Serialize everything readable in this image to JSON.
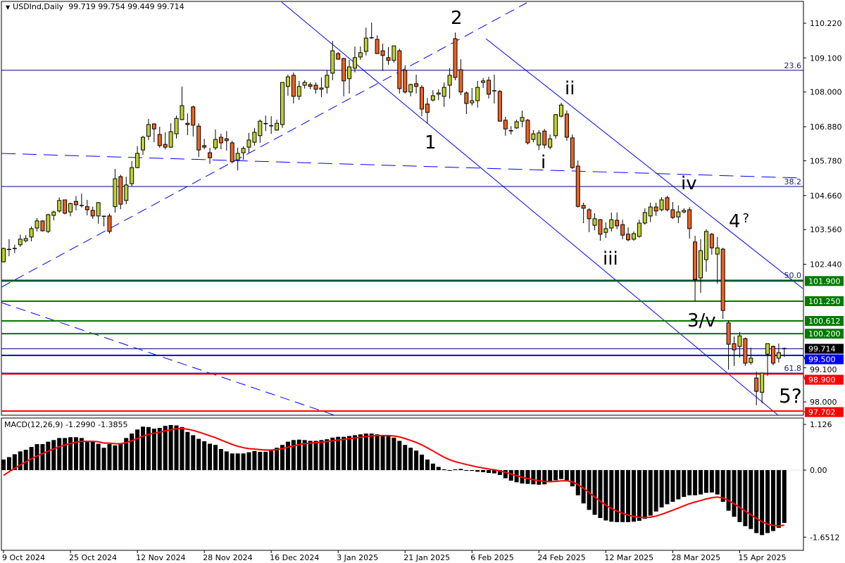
{
  "header": {
    "symbol": "USDInd,Daily",
    "ohlc": "99.719 99.754 99.449 99.714"
  },
  "macd_header": {
    "label": "MACD(12,26,9)",
    "values": "-1.2990 -1.3855"
  },
  "wave_labels": {
    "w1": "1",
    "w2": "2",
    "wi": "i",
    "wii": "ii",
    "wiii": "iii",
    "wiv": "iv",
    "w4": "4",
    "w4q": "?",
    "w3v": "3/v",
    "w5": "5?"
  },
  "colors": {
    "up": "#bfd22c",
    "down": "#f0621f",
    "trend": "#0000ff",
    "fib": "#000080",
    "green_level": "#007a00",
    "red_level": "#ff0000",
    "signal": "#ff0000"
  },
  "chart_data": [
    {
      "type": "candlestick",
      "title": "USDInd,Daily",
      "ylim": [
        97.5,
        110.9
      ],
      "price_ticks": [
        "110.220",
        "109.100",
        "108.000",
        "106.880",
        "105.780",
        "104.660",
        "103.560",
        "102.440",
        "99.100",
        "98.000"
      ],
      "date_ticks": [
        {
          "bar": 0,
          "label": "9 Oct 2024"
        },
        {
          "bar": 12,
          "label": "25 Oct 2024"
        },
        {
          "bar": 24,
          "label": "12 Nov 2024"
        },
        {
          "bar": 36,
          "label": "28 Nov 2024"
        },
        {
          "bar": 48,
          "label": "16 Dec 2024"
        },
        {
          "bar": 60,
          "label": "3 Jan 2025"
        },
        {
          "bar": 72,
          "label": "21 Jan 2025"
        },
        {
          "bar": 84,
          "label": "6 Feb 2025"
        },
        {
          "bar": 96,
          "label": "24 Feb 2025"
        },
        {
          "bar": 108,
          "label": "12 Mar 2025"
        },
        {
          "bar": 120,
          "label": "28 Mar 2025"
        },
        {
          "bar": 132,
          "label": "15 Apr 2025"
        }
      ],
      "levels": [
        {
          "price": 101.9,
          "label": "101.900",
          "color": "#007a00"
        },
        {
          "price": 101.25,
          "label": "101.250",
          "color": "#007a00"
        },
        {
          "price": 100.612,
          "label": "100.612",
          "color": "#007a00"
        },
        {
          "price": 100.2,
          "label": "100.200",
          "color": "#007a00"
        },
        {
          "price": 99.714,
          "label": "99.714",
          "color": "#000000"
        },
        {
          "price": 99.5,
          "label": "99.500",
          "color": "#0000ff"
        },
        {
          "price": 98.9,
          "label": "98.900",
          "color": "#ff0000"
        },
        {
          "price": 97.702,
          "label": "97.702",
          "color": "#ff0000"
        }
      ],
      "fib_levels": [
        {
          "price": 108.7,
          "label": "23.6"
        },
        {
          "price": 104.95,
          "label": "38.2"
        },
        {
          "price": 101.93,
          "label": "50.0"
        },
        {
          "price": 98.93,
          "label": "61.8"
        }
      ],
      "candles_ohlc": [
        [
          102.52,
          102.98,
          102.5,
          102.95
        ],
        [
          102.9,
          103.25,
          102.7,
          102.92
        ],
        [
          102.93,
          103.07,
          102.8,
          102.95
        ],
        [
          103.07,
          103.4,
          103.0,
          103.25
        ],
        [
          103.2,
          103.38,
          103.15,
          103.27
        ],
        [
          103.32,
          103.66,
          103.18,
          103.59
        ],
        [
          103.61,
          103.93,
          103.5,
          103.84
        ],
        [
          103.84,
          103.86,
          103.5,
          103.52
        ],
        [
          103.5,
          104.07,
          103.45,
          104.04
        ],
        [
          104.02,
          104.17,
          103.86,
          104.13
        ],
        [
          104.16,
          104.6,
          104.11,
          104.5
        ],
        [
          104.52,
          104.53,
          104.05,
          104.09
        ],
        [
          104.13,
          104.43,
          103.99,
          104.4
        ],
        [
          104.47,
          104.64,
          104.18,
          104.36
        ],
        [
          104.33,
          104.72,
          104.27,
          104.34
        ],
        [
          104.3,
          104.52,
          104.02,
          104.2
        ],
        [
          104.18,
          104.3,
          103.91,
          104.0
        ],
        [
          104.0,
          104.45,
          103.75,
          104.43
        ],
        [
          103.98,
          104.0,
          103.66,
          103.99
        ],
        [
          104.0,
          104.07,
          103.43,
          103.5
        ],
        [
          104.3,
          105.52,
          104.11,
          105.2
        ],
        [
          105.27,
          105.33,
          104.22,
          104.38
        ],
        [
          104.5,
          105.27,
          104.38,
          105.0
        ],
        [
          105.04,
          105.77,
          104.95,
          105.56
        ],
        [
          105.56,
          106.25,
          105.54,
          106.02
        ],
        [
          106.13,
          106.59,
          105.97,
          106.54
        ],
        [
          106.57,
          107.13,
          106.45,
          106.95
        ],
        [
          106.97,
          106.99,
          106.38,
          106.81
        ],
        [
          106.63,
          106.88,
          106.2,
          106.27
        ],
        [
          106.31,
          106.7,
          106.15,
          106.22
        ],
        [
          106.22,
          106.99,
          106.2,
          106.72
        ],
        [
          106.65,
          107.24,
          106.5,
          107.15
        ],
        [
          107.11,
          108.18,
          107.09,
          107.56
        ],
        [
          106.99,
          107.31,
          106.61,
          106.95
        ],
        [
          107.52,
          107.56,
          106.56,
          106.93
        ],
        [
          106.9,
          106.99,
          105.9,
          106.13
        ],
        [
          106.27,
          106.49,
          106.15,
          106.22
        ],
        [
          106.04,
          106.2,
          105.68,
          105.88
        ],
        [
          106.2,
          106.79,
          106.13,
          106.47
        ],
        [
          106.54,
          106.65,
          106.15,
          106.36
        ],
        [
          106.49,
          106.74,
          106.11,
          106.43
        ],
        [
          106.36,
          106.43,
          105.7,
          105.75
        ],
        [
          105.81,
          106.2,
          105.47,
          106.02
        ],
        [
          106.04,
          106.25,
          105.81,
          106.18
        ],
        [
          106.22,
          106.68,
          106.04,
          106.45
        ],
        [
          106.38,
          106.84,
          106.27,
          106.7
        ],
        [
          106.59,
          107.11,
          106.36,
          107.06
        ],
        [
          106.97,
          107.24,
          106.74,
          106.98
        ],
        [
          106.9,
          107.22,
          106.65,
          106.91
        ],
        [
          106.77,
          107.11,
          106.75,
          106.99
        ],
        [
          106.95,
          108.31,
          106.84,
          108.31
        ],
        [
          108.18,
          108.56,
          107.88,
          108.49
        ],
        [
          108.54,
          108.63,
          107.63,
          107.86
        ],
        [
          107.86,
          108.36,
          107.74,
          108.18
        ],
        [
          108.22,
          108.38,
          108.11,
          108.31
        ],
        [
          108.24,
          108.31,
          108.09,
          108.18
        ],
        [
          108.22,
          108.31,
          107.95,
          108.09
        ],
        [
          108.09,
          108.47,
          107.84,
          108.13
        ],
        [
          108.15,
          108.7,
          107.95,
          108.54
        ],
        [
          108.61,
          109.65,
          108.38,
          109.33
        ],
        [
          109.24,
          109.29,
          109.04,
          109.06
        ],
        [
          109.08,
          109.11,
          107.86,
          108.36
        ],
        [
          108.43,
          109.04,
          107.95,
          108.81
        ],
        [
          108.77,
          109.47,
          108.63,
          109.11
        ],
        [
          109.13,
          109.47,
          109.04,
          109.27
        ],
        [
          109.31,
          110.08,
          109.18,
          109.74
        ],
        [
          109.74,
          110.24,
          109.72,
          109.75
        ],
        [
          109.7,
          109.83,
          109.24,
          109.24
        ],
        [
          109.33,
          109.56,
          108.68,
          109.18
        ],
        [
          109.11,
          109.45,
          108.88,
          109.02
        ],
        [
          109.02,
          109.49,
          108.95,
          109.49
        ],
        [
          109.33,
          109.4,
          107.95,
          108.11
        ],
        [
          108.7,
          108.86,
          107.95,
          108.0
        ],
        [
          108.0,
          108.27,
          107.86,
          108.24
        ],
        [
          108.27,
          108.56,
          107.95,
          108.18
        ],
        [
          108.15,
          108.22,
          107.22,
          107.45
        ],
        [
          107.61,
          107.81,
          106.99,
          107.34
        ],
        [
          107.74,
          108.06,
          107.7,
          107.88
        ],
        [
          107.93,
          108.09,
          107.74,
          107.97
        ],
        [
          107.86,
          108.31,
          107.52,
          108.15
        ],
        [
          108.22,
          108.77,
          107.79,
          108.54
        ],
        [
          109.72,
          109.92,
          108.38,
          108.47
        ],
        [
          108.72,
          109.06,
          107.9,
          108.0
        ],
        [
          107.97,
          108.02,
          107.29,
          107.63
        ],
        [
          107.65,
          108.13,
          107.56,
          107.72
        ],
        [
          107.72,
          108.36,
          107.5,
          108.15
        ],
        [
          108.31,
          108.45,
          108.13,
          108.36
        ],
        [
          108.38,
          108.49,
          107.79,
          107.93
        ],
        [
          108.04,
          108.56,
          107.63,
          108.03
        ],
        [
          108.02,
          108.06,
          107.04,
          107.06
        ],
        [
          107.09,
          107.2,
          106.59,
          106.81
        ],
        [
          106.75,
          106.9,
          106.63,
          106.73
        ],
        [
          106.84,
          107.11,
          106.81,
          107.04
        ],
        [
          107.06,
          107.4,
          106.86,
          107.18
        ],
        [
          107.09,
          107.13,
          106.31,
          106.36
        ],
        [
          106.47,
          106.77,
          106.38,
          106.65
        ],
        [
          106.29,
          106.77,
          106.13,
          106.68
        ],
        [
          106.74,
          106.81,
          106.18,
          106.29
        ],
        [
          106.22,
          106.63,
          106.15,
          106.49
        ],
        [
          106.59,
          107.29,
          106.49,
          107.27
        ],
        [
          107.22,
          107.65,
          107.18,
          107.58
        ],
        [
          107.29,
          107.4,
          106.43,
          106.54
        ],
        [
          106.52,
          106.63,
          105.52,
          105.56
        ],
        [
          105.61,
          105.79,
          104.27,
          104.31
        ],
        [
          104.34,
          104.43,
          103.77,
          104.25
        ],
        [
          104.2,
          104.25,
          103.48,
          103.91
        ],
        [
          103.7,
          104.09,
          103.54,
          103.91
        ],
        [
          103.88,
          103.9,
          103.2,
          103.41
        ],
        [
          103.47,
          103.79,
          103.29,
          103.59
        ],
        [
          103.61,
          104.11,
          103.5,
          103.88
        ],
        [
          103.86,
          104.11,
          103.57,
          103.68
        ],
        [
          103.72,
          103.88,
          103.25,
          103.38
        ],
        [
          103.41,
          103.63,
          103.18,
          103.23
        ],
        [
          103.25,
          103.5,
          103.2,
          103.43
        ],
        [
          103.34,
          103.88,
          103.3,
          103.77
        ],
        [
          103.77,
          104.25,
          103.72,
          104.11
        ],
        [
          104.0,
          104.43,
          103.8,
          104.29
        ],
        [
          104.29,
          104.43,
          104.0,
          104.16
        ],
        [
          104.2,
          104.61,
          104.15,
          104.52
        ],
        [
          104.59,
          104.65,
          104.15,
          104.2
        ],
        [
          104.2,
          104.45,
          103.9,
          103.95
        ],
        [
          103.97,
          104.34,
          103.77,
          104.13
        ],
        [
          104.13,
          104.25,
          104.08,
          104.18
        ],
        [
          104.2,
          104.28,
          103.27,
          103.59
        ],
        [
          103.16,
          103.36,
          101.25,
          101.95
        ],
        [
          102.0,
          103.25,
          101.52,
          102.88
        ],
        [
          102.59,
          103.57,
          102.2,
          103.5
        ],
        [
          103.41,
          103.45,
          102.75,
          102.97
        ],
        [
          102.77,
          103.32,
          101.82,
          102.97
        ],
        [
          102.93,
          102.97,
          100.68,
          100.95
        ],
        [
          100.55,
          100.63,
          99.04,
          99.86
        ],
        [
          99.88,
          100.11,
          99.16,
          99.68
        ],
        [
          99.79,
          100.25,
          99.43,
          100.13
        ],
        [
          100.04,
          100.08,
          99.16,
          99.25
        ],
        [
          99.27,
          99.75,
          99.2,
          99.41
        ],
        [
          98.77,
          98.97,
          97.89,
          98.34
        ],
        [
          98.31,
          98.95,
          97.96,
          98.93
        ],
        [
          99.54,
          99.88,
          98.84,
          99.88
        ],
        [
          99.79,
          99.82,
          99.18,
          99.25
        ],
        [
          99.41,
          99.88,
          99.27,
          99.59
        ],
        [
          99.719,
          99.754,
          99.449,
          99.714
        ]
      ]
    },
    {
      "type": "bar",
      "title": "MACD(12,26,9)",
      "ylim": [
        -1.6512,
        1.126
      ],
      "y_ticks": [
        "1.126",
        "0.00",
        "-1.6512"
      ],
      "signal_last": -1.3855,
      "main_values": [
        0.26,
        0.32,
        0.39,
        0.46,
        0.5,
        0.57,
        0.64,
        0.64,
        0.7,
        0.74,
        0.79,
        0.79,
        0.81,
        0.81,
        0.79,
        0.71,
        0.71,
        0.65,
        0.55,
        0.64,
        0.61,
        0.64,
        0.79,
        0.9,
        1.0,
        1.07,
        1.06,
        1.02,
        1.04,
        1.09,
        1.11,
        1.1,
        1.06,
        0.94,
        0.86,
        0.77,
        0.71,
        0.65,
        0.62,
        0.52,
        0.46,
        0.41,
        0.41,
        0.41,
        0.44,
        0.47,
        0.45,
        0.45,
        0.5,
        0.55,
        0.62,
        0.7,
        0.74,
        0.75,
        0.74,
        0.72,
        0.72,
        0.74,
        0.76,
        0.8,
        0.82,
        0.82,
        0.84,
        0.86,
        0.88,
        0.9,
        0.9,
        0.88,
        0.86,
        0.85,
        0.8,
        0.72,
        0.62,
        0.55,
        0.48,
        0.38,
        0.26,
        0.16,
        0.08,
        0.02,
        0.0,
        0.02,
        0.03,
        0.0,
        -0.02,
        -0.04,
        -0.05,
        -0.07,
        -0.08,
        -0.12,
        -0.2,
        -0.26,
        -0.3,
        -0.33,
        -0.34,
        -0.35,
        -0.36,
        -0.35,
        -0.3,
        -0.25,
        -0.22,
        -0.25,
        -0.4,
        -0.62,
        -0.82,
        -0.98,
        -1.1,
        -1.18,
        -1.24,
        -1.27,
        -1.28,
        -1.28,
        -1.28,
        -1.27,
        -1.25,
        -1.2,
        -1.12,
        -1.02,
        -0.92,
        -0.84,
        -0.78,
        -0.72,
        -0.66,
        -0.62,
        -0.62,
        -0.6,
        -0.56,
        -0.55,
        -0.6,
        -0.78,
        -1.0,
        -1.15,
        -1.28,
        -1.38,
        -1.45,
        -1.55,
        -1.6,
        -1.55,
        -1.5,
        -1.42,
        -1.299
      ]
    }
  ]
}
